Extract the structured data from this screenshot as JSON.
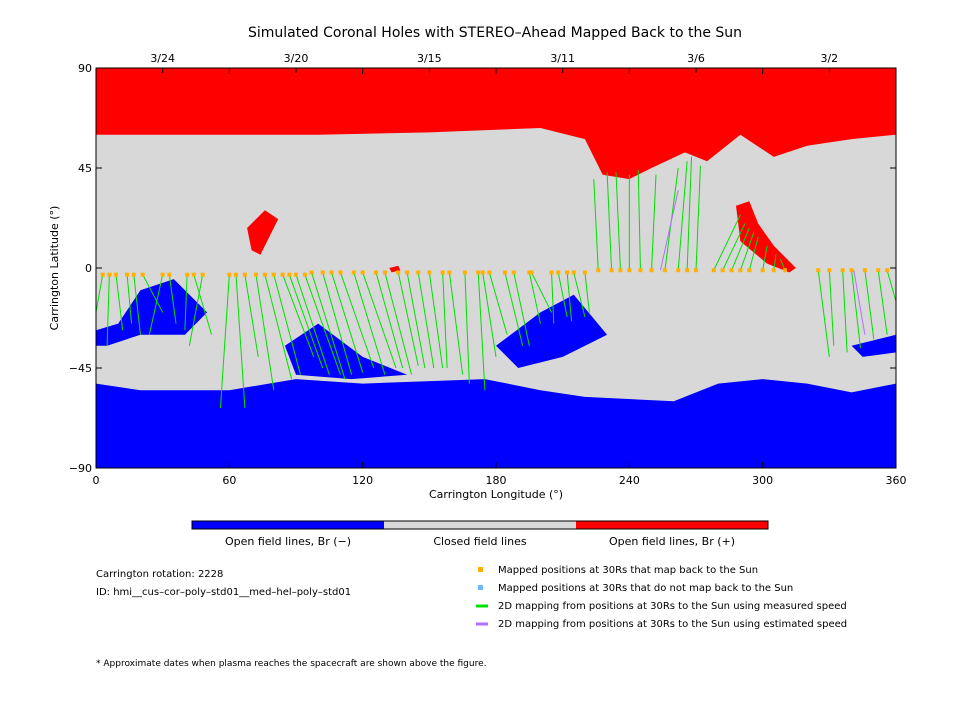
{
  "chart_data": {
    "type": "heatmap",
    "title": "Simulated Coronal Holes with STEREO–Ahead Mapped Back to the Sun",
    "xlabel": "Carrington Longitude (°)",
    "ylabel": "Carrington Latitude (°)",
    "xlim": [
      0,
      360
    ],
    "ylim": [
      -90,
      90
    ],
    "x_ticks": [
      0,
      60,
      120,
      180,
      240,
      300,
      360
    ],
    "y_ticks": [
      90,
      45,
      0,
      -45,
      -90
    ],
    "y_tick_labels": [
      "90",
      "45",
      "0",
      "−45",
      "−90"
    ],
    "top_axis_dates": [
      {
        "label": "3/24",
        "lon": 30
      },
      {
        "label": "3/20",
        "lon": 90
      },
      {
        "label": "3/15",
        "lon": 150
      },
      {
        "label": "3/11",
        "lon": 210
      },
      {
        "label": "3/6",
        "lon": 270
      },
      {
        "label": "3/2",
        "lon": 330
      }
    ],
    "colorbar": [
      {
        "label": "Open field lines, Br (−)",
        "color": "#0000ff"
      },
      {
        "label": "Closed field lines",
        "color": "#d8d8d8"
      },
      {
        "label": "Open field lines, Br (+)",
        "color": "#ff0000"
      }
    ],
    "regions": {
      "positive_open": {
        "color": "#ff0000",
        "boundary": [
          [
            0,
            90
          ],
          [
            360,
            90
          ],
          [
            360,
            60
          ],
          [
            340,
            58
          ],
          [
            320,
            55
          ],
          [
            305,
            50
          ],
          [
            290,
            60
          ],
          [
            275,
            48
          ],
          [
            265,
            52
          ],
          [
            250,
            45
          ],
          [
            240,
            40
          ],
          [
            228,
            42
          ],
          [
            220,
            58
          ],
          [
            200,
            63
          ],
          [
            150,
            61
          ],
          [
            100,
            60
          ],
          [
            70,
            60
          ],
          [
            0,
            60
          ]
        ],
        "patches": [
          {
            "boundary": [
              [
                288,
                28
              ],
              [
                294,
                30
              ],
              [
                298,
                20
              ],
              [
                305,
                10
              ],
              [
                315,
                0
              ],
              [
                312,
                -2
              ],
              [
                302,
                2
              ],
              [
                290,
                12
              ]
            ]
          },
          {
            "boundary": [
              [
                68,
                18
              ],
              [
                76,
                26
              ],
              [
                82,
                22
              ],
              [
                74,
                6
              ],
              [
                70,
                8
              ]
            ]
          },
          {
            "boundary": [
              [
                132,
                0
              ],
              [
                136,
                1
              ],
              [
                137,
                -1
              ],
              [
                133,
                -2
              ]
            ]
          }
        ]
      },
      "negative_open": {
        "color": "#0000ff",
        "boundary": [
          [
            0,
            -90
          ],
          [
            360,
            -90
          ],
          [
            360,
            -52
          ],
          [
            340,
            -56
          ],
          [
            320,
            -52
          ],
          [
            300,
            -50
          ],
          [
            280,
            -52
          ],
          [
            260,
            -60
          ],
          [
            220,
            -58
          ],
          [
            200,
            -55
          ],
          [
            175,
            -50
          ],
          [
            120,
            -52
          ],
          [
            90,
            -50
          ],
          [
            60,
            -55
          ],
          [
            40,
            -55
          ],
          [
            20,
            -55
          ],
          [
            0,
            -52
          ]
        ],
        "patches": [
          {
            "boundary": [
              [
                0,
                -28
              ],
              [
                10,
                -25
              ],
              [
                20,
                -10
              ],
              [
                35,
                -5
              ],
              [
                50,
                -20
              ],
              [
                40,
                -30
              ],
              [
                20,
                -30
              ],
              [
                5,
                -35
              ],
              [
                0,
                -35
              ]
            ]
          },
          {
            "boundary": [
              [
                85,
                -35
              ],
              [
                100,
                -25
              ],
              [
                120,
                -40
              ],
              [
                140,
                -48
              ],
              [
                115,
                -50
              ],
              [
                90,
                -48
              ]
            ]
          },
          {
            "boundary": [
              [
                180,
                -35
              ],
              [
                200,
                -20
              ],
              [
                215,
                -12
              ],
              [
                230,
                -30
              ],
              [
                210,
                -40
              ],
              [
                190,
                -45
              ]
            ]
          },
          {
            "boundary": [
              [
                340,
                -35
              ],
              [
                360,
                -30
              ],
              [
                360,
                -38
              ],
              [
                345,
                -40
              ]
            ]
          }
        ]
      }
    },
    "series": [
      {
        "name": "Mapped positions at 30Rs that map back to the Sun",
        "color": "#ffb000",
        "x": [
          3,
          6,
          9,
          14,
          17,
          21,
          30,
          33,
          41,
          44,
          48,
          60,
          63,
          67,
          72,
          76,
          80,
          84,
          87,
          90,
          94,
          97,
          102,
          106,
          110,
          116,
          120,
          126,
          130,
          136,
          140,
          145,
          150,
          156,
          159,
          166,
          172,
          174,
          177,
          184,
          188,
          195,
          196,
          205,
          208,
          212,
          215,
          220,
          226,
          232,
          236,
          240,
          245,
          250,
          256,
          262,
          266,
          270,
          278,
          282,
          286,
          290,
          294,
          300,
          305,
          310,
          325,
          330,
          336,
          340,
          346,
          352,
          356
        ],
        "y": [
          -3,
          -3,
          -3,
          -3,
          -3,
          -3,
          -3,
          -3,
          -3,
          -3,
          -3,
          -3,
          -3,
          -3,
          -3,
          -3,
          -3,
          -3,
          -3,
          -3,
          -3,
          -2,
          -2,
          -2,
          -2,
          -2,
          -2,
          -2,
          -2,
          -2,
          -2,
          -2,
          -2,
          -2,
          -2,
          -2,
          -2,
          -2,
          -2,
          -2,
          -2,
          -2,
          -2,
          -2,
          -2,
          -2,
          -2,
          -2,
          -1,
          -1,
          -1,
          -1,
          -1,
          -1,
          -1,
          -1,
          -1,
          -1,
          -1,
          -1,
          -1,
          -1,
          -1,
          -1,
          -1,
          -1,
          -1,
          -1,
          -1,
          -1,
          -1,
          -1,
          -1
        ]
      },
      {
        "name": "Mapped positions at 30Rs that do not map back to the Sun",
        "color": "#6fb7ff",
        "x": [],
        "y": []
      },
      {
        "name": "2D mapping from positions at 30Rs to the Sun using measured speed",
        "color": "#00e000",
        "segments": [
          [
            3,
            -3,
            0,
            -20
          ],
          [
            6,
            -3,
            5,
            -35
          ],
          [
            9,
            -3,
            12,
            -28
          ],
          [
            14,
            -3,
            16,
            -25
          ],
          [
            17,
            -3,
            20,
            -30
          ],
          [
            21,
            -3,
            30,
            -20
          ],
          [
            30,
            -3,
            24,
            -30
          ],
          [
            33,
            -3,
            36,
            -25
          ],
          [
            41,
            -3,
            40,
            -28
          ],
          [
            44,
            -3,
            52,
            -30
          ],
          [
            48,
            -3,
            42,
            -35
          ],
          [
            60,
            -3,
            56,
            -63
          ],
          [
            63,
            -3,
            67,
            -63
          ],
          [
            67,
            -3,
            73,
            -40
          ],
          [
            72,
            -3,
            80,
            -55
          ],
          [
            76,
            -3,
            88,
            -50
          ],
          [
            80,
            -3,
            92,
            -48
          ],
          [
            84,
            -3,
            98,
            -40
          ],
          [
            87,
            -3,
            102,
            -45
          ],
          [
            90,
            -3,
            105,
            -48
          ],
          [
            94,
            -3,
            110,
            -48
          ],
          [
            97,
            -2,
            112,
            -50
          ],
          [
            102,
            -2,
            115,
            -48
          ],
          [
            106,
            -2,
            120,
            -47
          ],
          [
            110,
            -2,
            125,
            -45
          ],
          [
            116,
            -2,
            130,
            -48
          ],
          [
            120,
            -2,
            135,
            -45
          ],
          [
            126,
            -2,
            138,
            -45
          ],
          [
            130,
            -2,
            142,
            -48
          ],
          [
            136,
            -2,
            145,
            -44
          ],
          [
            140,
            -2,
            148,
            -45
          ],
          [
            145,
            -2,
            152,
            -45
          ],
          [
            150,
            -2,
            156,
            -45
          ],
          [
            156,
            -2,
            158,
            -45
          ],
          [
            159,
            -2,
            165,
            -48
          ],
          [
            166,
            -2,
            168,
            -52
          ],
          [
            172,
            -2,
            175,
            -55
          ],
          [
            174,
            -2,
            180,
            -40
          ],
          [
            177,
            -2,
            185,
            -30
          ],
          [
            184,
            -2,
            192,
            -35
          ],
          [
            188,
            -2,
            195,
            -35
          ],
          [
            195,
            -2,
            200,
            -25
          ],
          [
            196,
            -2,
            205,
            -20
          ],
          [
            205,
            -2,
            206,
            -25
          ],
          [
            208,
            -2,
            212,
            -22
          ],
          [
            212,
            -2,
            214,
            -24
          ],
          [
            215,
            -2,
            220,
            -22
          ],
          [
            220,
            -2,
            222,
            -20
          ],
          [
            226,
            -1,
            224,
            40
          ],
          [
            232,
            -1,
            230,
            43
          ],
          [
            236,
            -1,
            234,
            43
          ],
          [
            240,
            -1,
            240,
            42
          ],
          [
            245,
            -1,
            244,
            44
          ],
          [
            250,
            -1,
            252,
            42
          ],
          [
            256,
            -1,
            262,
            45
          ],
          [
            262,
            -1,
            266,
            48
          ],
          [
            266,
            -1,
            268,
            50
          ],
          [
            270,
            -1,
            272,
            46
          ],
          [
            278,
            -1,
            290,
            24
          ],
          [
            282,
            -1,
            292,
            20
          ],
          [
            286,
            -1,
            294,
            18
          ],
          [
            290,
            -1,
            296,
            16
          ],
          [
            294,
            -1,
            298,
            14
          ],
          [
            300,
            -1,
            302,
            10
          ],
          [
            305,
            -1,
            306,
            6
          ],
          [
            310,
            -1,
            308,
            4
          ],
          [
            325,
            -1,
            330,
            -40
          ],
          [
            330,
            -1,
            332,
            -35
          ],
          [
            336,
            -1,
            338,
            -38
          ],
          [
            340,
            -1,
            344,
            -36
          ],
          [
            346,
            -1,
            350,
            -32
          ],
          [
            352,
            -1,
            356,
            -30
          ],
          [
            356,
            -1,
            360,
            -15
          ]
        ]
      },
      {
        "name": "2D mapping from positions at 30Rs to the Sun using estimated speed",
        "color": "#b070ff",
        "segments": [
          [
            254,
            -1,
            262,
            35
          ],
          [
            341,
            -1,
            346,
            -30
          ]
        ]
      }
    ],
    "info": [
      "Carrington rotation: 2228",
      "ID: hmi__cus–cor–poly–std01__med–hel–poly–std01"
    ],
    "footnote": "* Approximate dates when plasma reaches the spacecraft are shown above the figure."
  }
}
